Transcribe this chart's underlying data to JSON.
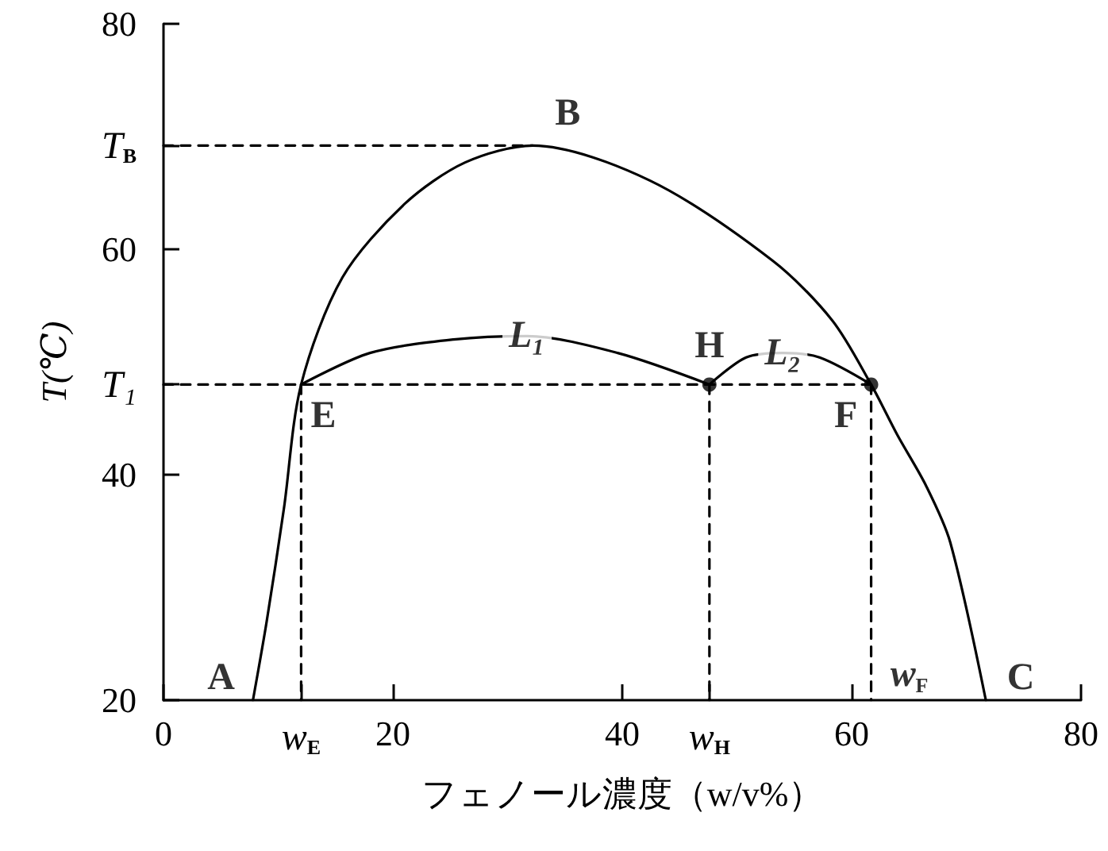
{
  "chart_data": {
    "type": "line",
    "xlabel": "フェノール濃度（w/v%）",
    "ylabel": "T(℃)",
    "xlim": [
      0,
      80
    ],
    "xticks": [
      0,
      {
        "value": 12,
        "label": "w$_{E}$"
      },
      20,
      40,
      {
        "value": 47.6,
        "label": "w$_{H}$"
      },
      60,
      80
    ],
    "ylim": [
      20,
      80
    ],
    "yticks": [
      20,
      40,
      {
        "value": 48,
        "label": "T₁"
      },
      60,
      {
        "value": 69.2,
        "label": "T$_{B}$"
      },
      80
    ],
    "grid": false,
    "series": [
      {
        "color": "#000000",
        "marker": "none",
        "line_style": "solid",
        "x": [
          7.8,
          9,
          10.5,
          12,
          15.6,
          21,
          26.3,
          32.2,
          42.4,
          53.1,
          58.3,
          61.7,
          64,
          66.5,
          68.6,
          71.7
        ],
        "values": [
          20,
          27,
          37,
          48,
          57.5,
          64,
          67.7,
          69.2,
          66.1,
          59,
          53.7,
          48,
          43.5,
          39,
          34,
          20
        ]
      },
      {
        "color": "#000000",
        "marker": "none",
        "line_style": "solid",
        "x": [
          12,
          18,
          25.3,
          31.7,
          39.6,
          47.6
        ],
        "values": [
          48,
          50.8,
          52,
          52.3,
          50.8,
          48
        ]
      },
      {
        "color": "#000000",
        "marker": "none",
        "line_style": "solid",
        "x": [
          47.6,
          50.8,
          54,
          57.2,
          61.7
        ],
        "values": [
          48,
          50.4,
          50.8,
          50.4,
          48
        ]
      },
      {
        "color": "#000000",
        "marker": "none",
        "line_style": "dashed",
        "x": [
          0,
          32.2
        ],
        "values": [
          69.2,
          69.2
        ]
      },
      {
        "color": "#000000",
        "marker": "none",
        "line_style": "dashed",
        "x": [
          0,
          61.7
        ],
        "values": [
          48,
          48
        ]
      },
      {
        "color": "#000000",
        "marker": "none",
        "line_style": "dashed",
        "x": [
          12,
          12
        ],
        "values": [
          48,
          20
        ]
      },
      {
        "color": "#000000",
        "marker": "none",
        "line_style": "dashed",
        "x": [
          47.6,
          47.6
        ],
        "values": [
          48,
          20
        ]
      },
      {
        "color": "#000000",
        "marker": "none",
        "line_style": "dashed",
        "x": [
          61.7,
          61.7
        ],
        "values": [
          48,
          20
        ]
      },
      {
        "type": "scatter",
        "color": "#000000",
        "marker": "circle",
        "x": [
          47.6,
          61.7
        ],
        "values": [
          48,
          48
        ]
      }
    ],
    "annotations": [
      {
        "text": "A",
        "x": 7.8,
        "y": 20
      },
      {
        "text": "B",
        "x": 32.2,
        "y": 69.2
      },
      {
        "text": "C",
        "x": 71.7,
        "y": 20
      },
      {
        "text": "E",
        "x": 12,
        "y": 48
      },
      {
        "text": "F",
        "x": 61.7,
        "y": 48
      },
      {
        "text": "H",
        "x": 47.6,
        "y": 48
      },
      {
        "text": "L₁",
        "x": 31.7,
        "y": 52.3
      },
      {
        "text": "L₂",
        "x": 54,
        "y": 50.8
      },
      {
        "text": "w$_{F}$",
        "x": 61.7,
        "y": 20
      }
    ]
  }
}
